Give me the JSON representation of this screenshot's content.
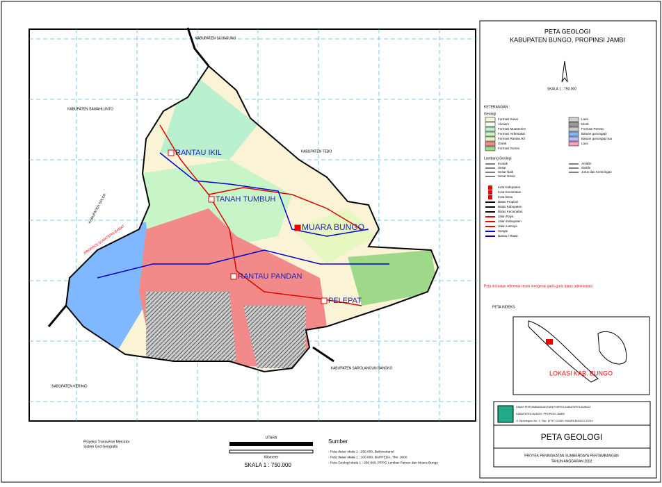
{
  "header": {
    "title": "PETA GEOLOGI",
    "subtitle": "KABUPATEN BUNGO, PROPINSI JAMBI",
    "scale": "SKALA 1 : 750.000"
  },
  "map": {
    "towns": [
      "RANTAU IKIL",
      "TANAH TUMBUH",
      "MUARA BUNGO",
      "RANTAU PANDAN",
      "PELEPAT"
    ],
    "regions": [
      "KABUPATEN SIJUNJUNG",
      "KABUPATEN SAWAHLUNTO",
      "KABUPATEN TEBO",
      "KABUPATEN SOLOK",
      "KABUPATEN SAROLANGUN BANGKO",
      "KABUPATEN KERINCI"
    ],
    "province": "PROPINSI SUMATERA BARAT"
  },
  "legend": {
    "title": "KETERANGAN :",
    "geology_title": "Geologi",
    "geology": [
      {
        "label": "Formasi Kasai",
        "color": "#fbf3d5"
      },
      {
        "label": "Aluvium",
        "color": "#ffffff"
      },
      {
        "label": "Formasi Muaraenim",
        "color": "#b9f0d0"
      },
      {
        "label": "Formasi Airbenakat",
        "color": "#c8f5c8"
      },
      {
        "label": "Formasi Rantau Ikil",
        "color": "#e6f7c0"
      },
      {
        "label": "Granit",
        "color": "#f28a8a"
      },
      {
        "label": "Formasi Gumai",
        "color": "#9ed98a"
      },
      {
        "label": "Lava",
        "color": "#d0d0d0"
      },
      {
        "label": "Diorit",
        "color": "#999999"
      },
      {
        "label": "Formasi Peneta",
        "color": "#c9c9c9"
      },
      {
        "label": "Batuan gunungapi",
        "color": "#7fb8ff"
      },
      {
        "label": "Batuan gunungapi tua",
        "color": "#b8b8ff"
      },
      {
        "label": "Lava",
        "color": "#f4a0c0"
      }
    ],
    "structure_title": "Lambang Geologi",
    "structures": [
      "Kontak",
      "Sesar",
      "Sesar Naik",
      "Sesar Geser",
      "Antiklin",
      "Sinklin",
      "Jurus dan Kemiringan"
    ],
    "symbols": [
      "Kota Kabupaten",
      "Kota Kecamatan",
      "Kota Desa",
      "Batas Propinsi",
      "Batas Kabupaten",
      "Batas Kecamatan",
      "Jalan Raya",
      "Jalan Kabupaten",
      "Jalan Lainnya",
      "Sungai",
      "Danau / Rawa"
    ],
    "note": "Peta ini bukan referensi resmi mengenai garis-garis batas administrasi"
  },
  "index": {
    "title": "PETA INDEKS",
    "label": "LOKASI KAB. BUNGO"
  },
  "titleblock": {
    "agency": "DINAS PERTAMBANGAN DAN ENERGI KABUPATEN BUNGO",
    "region": "KABUPATEN BUNGO, PROPINSI JAMBI",
    "address": "Jl. Diponegoro No. 1, Telp. (0747) 21059, MUARA BUNGO 37214",
    "title": "PETA GEOLOGI",
    "project": "PROYEK PENINGKATAN SUMBERDAYA PERTAMBANGAN",
    "year": "TAHUN ANGGARAN 2002"
  },
  "footer": {
    "projection": "Proyeksi Transverse Mercator",
    "grid": "Sistem Grid Geografis",
    "north": "UTARA",
    "unit": "Kilometer",
    "scale": "SKALA 1 : 750.000",
    "source_title": "Sumber",
    "sources": [
      "- Peta dasar skala 1 : 250.000, Bakosurtanal",
      "- Peta dasar skala 1 : 100.000, BAPPEDA, Thn. 2000",
      "- Peta Geologi skala 1 : 250.000, PPPG Lembar Painan dan Muara Bungo"
    ]
  }
}
